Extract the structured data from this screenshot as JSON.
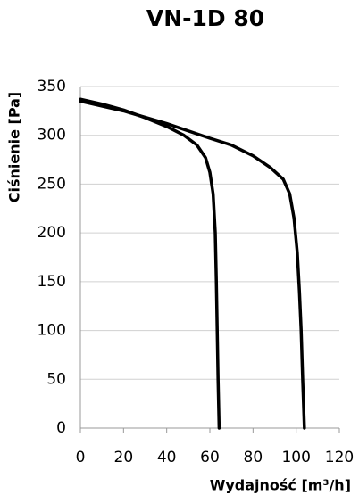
{
  "chart_data": {
    "type": "line",
    "title": "VN-1D 80",
    "x_label": "Wydajność [m³/h]",
    "y_label": "Ciśnienie [Pa]",
    "xlim": [
      0,
      120
    ],
    "xticks": [
      0,
      20,
      40,
      60,
      80,
      100,
      120
    ],
    "ylim": [
      0,
      350
    ],
    "yticks": [
      0,
      50,
      100,
      150,
      200,
      250,
      300,
      350
    ],
    "grid": true,
    "series": [
      {
        "color": "#000000",
        "x": [
          0,
          10,
          20,
          30,
          40,
          48,
          54,
          58,
          60,
          61.5,
          62.5,
          63,
          63.4,
          63.8,
          64.3
        ],
        "values": [
          337,
          332,
          326,
          318,
          309,
          300,
          290,
          277,
          262,
          240,
          200,
          150,
          100,
          50,
          0
        ]
      },
      {
        "color": "#000000",
        "x": [
          0,
          20,
          40,
          60,
          70,
          80,
          88,
          94,
          97,
          99,
          100.5,
          101.5,
          102.3,
          103,
          103.8
        ],
        "values": [
          335,
          325,
          312,
          297,
          290,
          279,
          267,
          255,
          240,
          215,
          180,
          140,
          100,
          50,
          0
        ]
      }
    ]
  }
}
